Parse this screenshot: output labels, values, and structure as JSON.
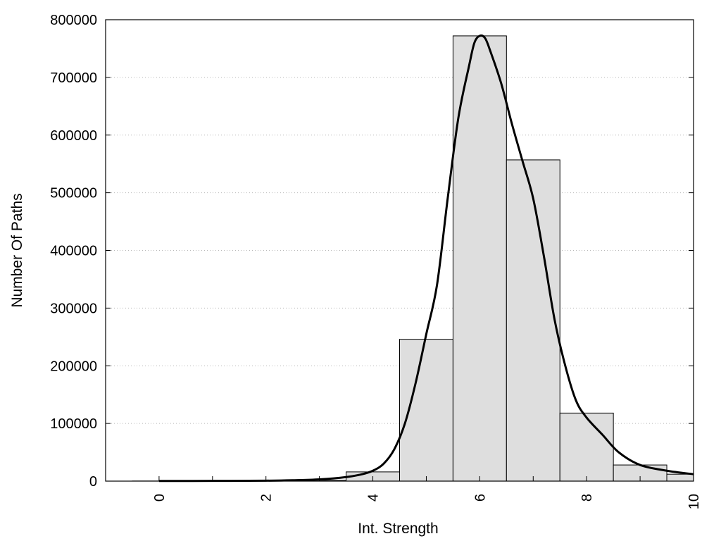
{
  "chart_data": {
    "type": "bar",
    "title": "",
    "xlabel": "Int. Strength",
    "ylabel": "Number Of Paths",
    "xlim": [
      -1,
      10
    ],
    "ylim": [
      0,
      800000
    ],
    "x_ticks": [
      0,
      2,
      4,
      6,
      8,
      10
    ],
    "x_tick_labels": [
      "0",
      "2",
      "4",
      "6",
      "8",
      "10"
    ],
    "y_ticks": [
      0,
      100000,
      200000,
      300000,
      400000,
      500000,
      600000,
      700000,
      800000
    ],
    "y_tick_labels": [
      "0",
      "100000",
      "200000",
      "300000",
      "400000",
      "500000",
      "600000",
      "700000",
      "800000"
    ],
    "grid": "horizontal dotted",
    "legend": "none",
    "bar_color": "#dedede",
    "bar_edge_color": "#000000",
    "curve_color": "#000000",
    "bars": [
      {
        "x": 0,
        "value": 200
      },
      {
        "x": 1,
        "value": 300
      },
      {
        "x": 2,
        "value": 500
      },
      {
        "x": 3,
        "value": 1500
      },
      {
        "x": 4,
        "value": 16000
      },
      {
        "x": 5,
        "value": 246000
      },
      {
        "x": 6,
        "value": 772000
      },
      {
        "x": 7,
        "value": 557000
      },
      {
        "x": 8,
        "value": 118000
      },
      {
        "x": 9,
        "value": 28000
      },
      {
        "x": 10,
        "value": 12000
      }
    ],
    "curve": {
      "x": [
        0,
        1,
        2,
        2.5,
        3,
        3.5,
        3.8,
        4,
        4.2,
        4.4,
        4.6,
        4.8,
        5,
        5.2,
        5.4,
        5.6,
        5.8,
        5.9,
        6,
        6.1,
        6.2,
        6.4,
        6.6,
        6.8,
        7,
        7.2,
        7.4,
        7.6,
        7.8,
        8,
        8.3,
        8.6,
        9,
        9.5,
        10
      ],
      "y": [
        300,
        400,
        800,
        1500,
        3000,
        7000,
        12000,
        18000,
        30000,
        55000,
        100000,
        170000,
        255000,
        340000,
        490000,
        630000,
        720000,
        760000,
        772000,
        768000,
        745000,
        690000,
        620000,
        555000,
        490000,
        390000,
        280000,
        200000,
        140000,
        110000,
        80000,
        50000,
        28000,
        18000,
        12000
      ]
    }
  }
}
